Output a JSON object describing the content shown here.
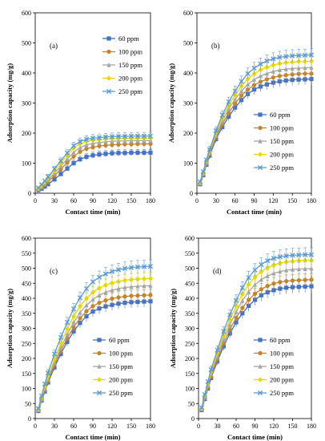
{
  "colors": [
    "#4472C4",
    "#C5832A",
    "#A5A5A5",
    "#E6D800",
    "#5B9BD5"
  ],
  "chart_data": [
    {
      "type": "line",
      "panel_label": "(a)",
      "xlabel": "Contact time (min)",
      "ylabel": "Adsorption capacity (mg/g)",
      "xlim": [
        0,
        180
      ],
      "ylim": [
        0,
        600
      ],
      "xticks": [
        0,
        30,
        60,
        90,
        120,
        150,
        180
      ],
      "yticks": [
        0,
        100,
        200,
        300,
        400,
        500,
        600
      ],
      "legend_position": "top-right",
      "x": [
        5,
        10,
        15,
        20,
        30,
        40,
        50,
        60,
        70,
        80,
        90,
        100,
        110,
        120,
        130,
        140,
        150,
        160,
        170,
        180
      ],
      "series": [
        {
          "name": "60 ppm",
          "values": [
            10,
            15,
            22,
            30,
            46,
            64,
            82,
            100,
            113,
            121,
            126,
            129,
            131,
            133,
            134,
            134,
            135,
            135,
            135,
            135
          ]
        },
        {
          "name": "100 ppm",
          "values": [
            12,
            19,
            28,
            38,
            58,
            80,
            102,
            122,
            138,
            148,
            153,
            157,
            159,
            161,
            162,
            163,
            163,
            164,
            164,
            164
          ]
        },
        {
          "name": "150 ppm",
          "values": [
            14,
            22,
            32,
            44,
            66,
            90,
            114,
            136,
            152,
            161,
            166,
            169,
            171,
            173,
            174,
            174,
            175,
            175,
            175,
            175
          ]
        },
        {
          "name": "200 ppm",
          "values": [
            16,
            26,
            37,
            50,
            74,
            100,
            126,
            150,
            164,
            172,
            176,
            178,
            180,
            181,
            182,
            182,
            182,
            183,
            183,
            183
          ]
        },
        {
          "name": "250 ppm",
          "values": [
            18,
            29,
            41,
            55,
            81,
            108,
            134,
            158,
            172,
            179,
            183,
            185,
            187,
            188,
            189,
            189,
            190,
            190,
            190,
            190
          ]
        }
      ]
    },
    {
      "type": "line",
      "panel_label": "(b)",
      "xlabel": "Contact time (min)",
      "ylabel": "Adsorption capacity (mg/g)",
      "xlim": [
        0,
        180
      ],
      "ylim": [
        0,
        600
      ],
      "xticks": [
        0,
        30,
        60,
        90,
        120,
        150,
        180
      ],
      "yticks": [
        0,
        100,
        200,
        300,
        400,
        500,
        600
      ],
      "legend_position": "bottom-right",
      "x": [
        5,
        10,
        15,
        20,
        30,
        40,
        50,
        60,
        70,
        80,
        90,
        100,
        110,
        120,
        130,
        140,
        150,
        160,
        170,
        180
      ],
      "series": [
        {
          "name": "60 ppm",
          "values": [
            30,
            60,
            95,
            125,
            180,
            220,
            255,
            285,
            310,
            330,
            345,
            355,
            362,
            368,
            372,
            375,
            377,
            378,
            379,
            380
          ]
        },
        {
          "name": "100 ppm",
          "values": [
            32,
            63,
            99,
            130,
            187,
            230,
            267,
            298,
            325,
            345,
            360,
            371,
            379,
            385,
            390,
            393,
            395,
            397,
            398,
            398
          ]
        },
        {
          "name": "150 ppm",
          "values": [
            34,
            66,
            103,
            135,
            194,
            240,
            280,
            312,
            340,
            362,
            378,
            390,
            398,
            405,
            410,
            413,
            415,
            416,
            417,
            418
          ]
        },
        {
          "name": "200 ppm",
          "values": [
            36,
            69,
            107,
            140,
            201,
            250,
            292,
            326,
            356,
            380,
            397,
            410,
            419,
            426,
            431,
            434,
            436,
            438,
            438,
            439
          ]
        },
        {
          "name": "250 ppm",
          "values": [
            38,
            72,
            111,
            145,
            208,
            260,
            304,
            340,
            372,
            398,
            416,
            430,
            440,
            447,
            452,
            455,
            457,
            458,
            459,
            460
          ]
        }
      ]
    },
    {
      "type": "line",
      "panel_label": "(c)",
      "xlabel": "Contact time (min)",
      "ylabel": "Adsorption capacity (mg/g)",
      "xlim": [
        0,
        180
      ],
      "ylim": [
        0,
        600
      ],
      "xticks": [
        0,
        30,
        60,
        90,
        120,
        150,
        180
      ],
      "yticks": [
        0,
        50,
        100,
        150,
        200,
        250,
        300,
        350,
        400,
        450,
        500,
        550,
        600
      ],
      "legend_position": "bottom-right",
      "x": [
        5,
        10,
        15,
        20,
        30,
        40,
        50,
        60,
        70,
        80,
        90,
        100,
        110,
        120,
        130,
        140,
        150,
        160,
        170,
        180
      ],
      "series": [
        {
          "name": "60 ppm",
          "values": [
            25,
            60,
            90,
            120,
            170,
            215,
            255,
            290,
            318,
            340,
            356,
            366,
            373,
            378,
            382,
            385,
            387,
            388,
            389,
            390
          ]
        },
        {
          "name": "100 ppm",
          "values": [
            27,
            63,
            95,
            126,
            178,
            225,
            267,
            304,
            334,
            357,
            374,
            385,
            393,
            399,
            403,
            406,
            408,
            409,
            410,
            411
          ]
        },
        {
          "name": "150 ppm",
          "values": [
            29,
            66,
            100,
            132,
            186,
            236,
            280,
            320,
            352,
            377,
            396,
            410,
            420,
            427,
            432,
            436,
            438,
            440,
            441,
            442
          ]
        },
        {
          "name": "200 ppm",
          "values": [
            31,
            70,
            106,
            140,
            197,
            250,
            298,
            340,
            374,
            400,
            420,
            434,
            444,
            451,
            456,
            460,
            462,
            464,
            465,
            466
          ]
        },
        {
          "name": "250 ppm",
          "values": [
            33,
            75,
            115,
            152,
            215,
            270,
            320,
            365,
            402,
            432,
            455,
            470,
            481,
            489,
            495,
            499,
            502,
            504,
            505,
            506
          ]
        }
      ]
    },
    {
      "type": "line",
      "panel_label": "(d)",
      "xlabel": "Contact time (min)",
      "ylabel": "Adsorption capacity (mg/g)",
      "xlim": [
        0,
        180
      ],
      "ylim": [
        0,
        600
      ],
      "xticks": [
        0,
        30,
        60,
        90,
        120,
        150,
        180
      ],
      "yticks": [
        0,
        50,
        100,
        150,
        200,
        250,
        300,
        350,
        400,
        450,
        500,
        550,
        600
      ],
      "legend_position": "bottom-right",
      "x": [
        5,
        10,
        15,
        20,
        30,
        40,
        50,
        60,
        70,
        80,
        90,
        100,
        110,
        120,
        130,
        140,
        150,
        160,
        170,
        180
      ],
      "series": [
        {
          "name": "60 ppm",
          "values": [
            28,
            65,
            100,
            135,
            190,
            240,
            283,
            320,
            350,
            375,
            395,
            410,
            420,
            427,
            432,
            435,
            437,
            438,
            439,
            440
          ]
        },
        {
          "name": "100 ppm",
          "values": [
            30,
            68,
            105,
            140,
            198,
            250,
            296,
            335,
            368,
            395,
            415,
            430,
            441,
            449,
            454,
            457,
            459,
            460,
            461,
            462
          ]
        },
        {
          "name": "150 ppm",
          "values": [
            32,
            72,
            111,
            148,
            208,
            263,
            312,
            355,
            392,
            422,
            445,
            462,
            474,
            483,
            489,
            493,
            496,
            497,
            498,
            499
          ]
        },
        {
          "name": "200 ppm",
          "values": [
            34,
            76,
            117,
            155,
            218,
            276,
            328,
            374,
            414,
            446,
            471,
            489,
            502,
            511,
            517,
            521,
            523,
            525,
            526,
            526
          ]
        },
        {
          "name": "250 ppm",
          "values": [
            36,
            80,
            123,
            163,
            228,
            290,
            345,
            393,
            435,
            469,
            494,
            512,
            525,
            533,
            538,
            541,
            543,
            544,
            545,
            545
          ]
        }
      ]
    }
  ]
}
